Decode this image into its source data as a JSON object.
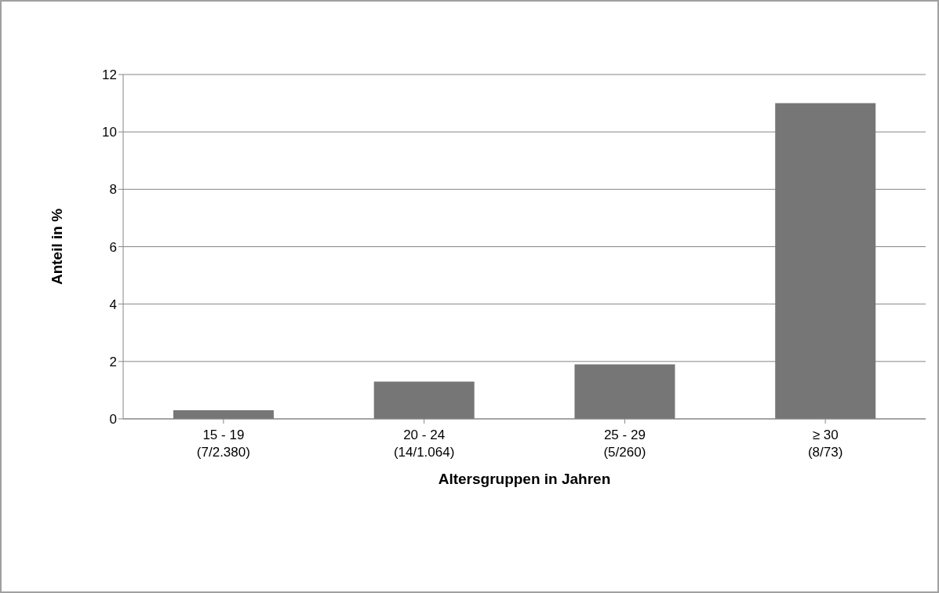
{
  "chart_data": {
    "type": "bar",
    "xlabel": "Altersgruppen in Jahren",
    "ylabel": "Anteil in %",
    "categories": [
      "15 - 19\n(7/2.380)",
      "20 - 24\n(14/1.064)",
      "25 - 29\n(5/260)",
      "≥ 30\n(8/73)"
    ],
    "values": [
      0.3,
      1.3,
      1.9,
      11.0
    ],
    "color": "#767676",
    "ylim": [
      0,
      12
    ],
    "yticks": [
      0,
      2,
      4,
      6,
      8,
      10,
      12
    ],
    "grid": "y",
    "legend": false
  }
}
